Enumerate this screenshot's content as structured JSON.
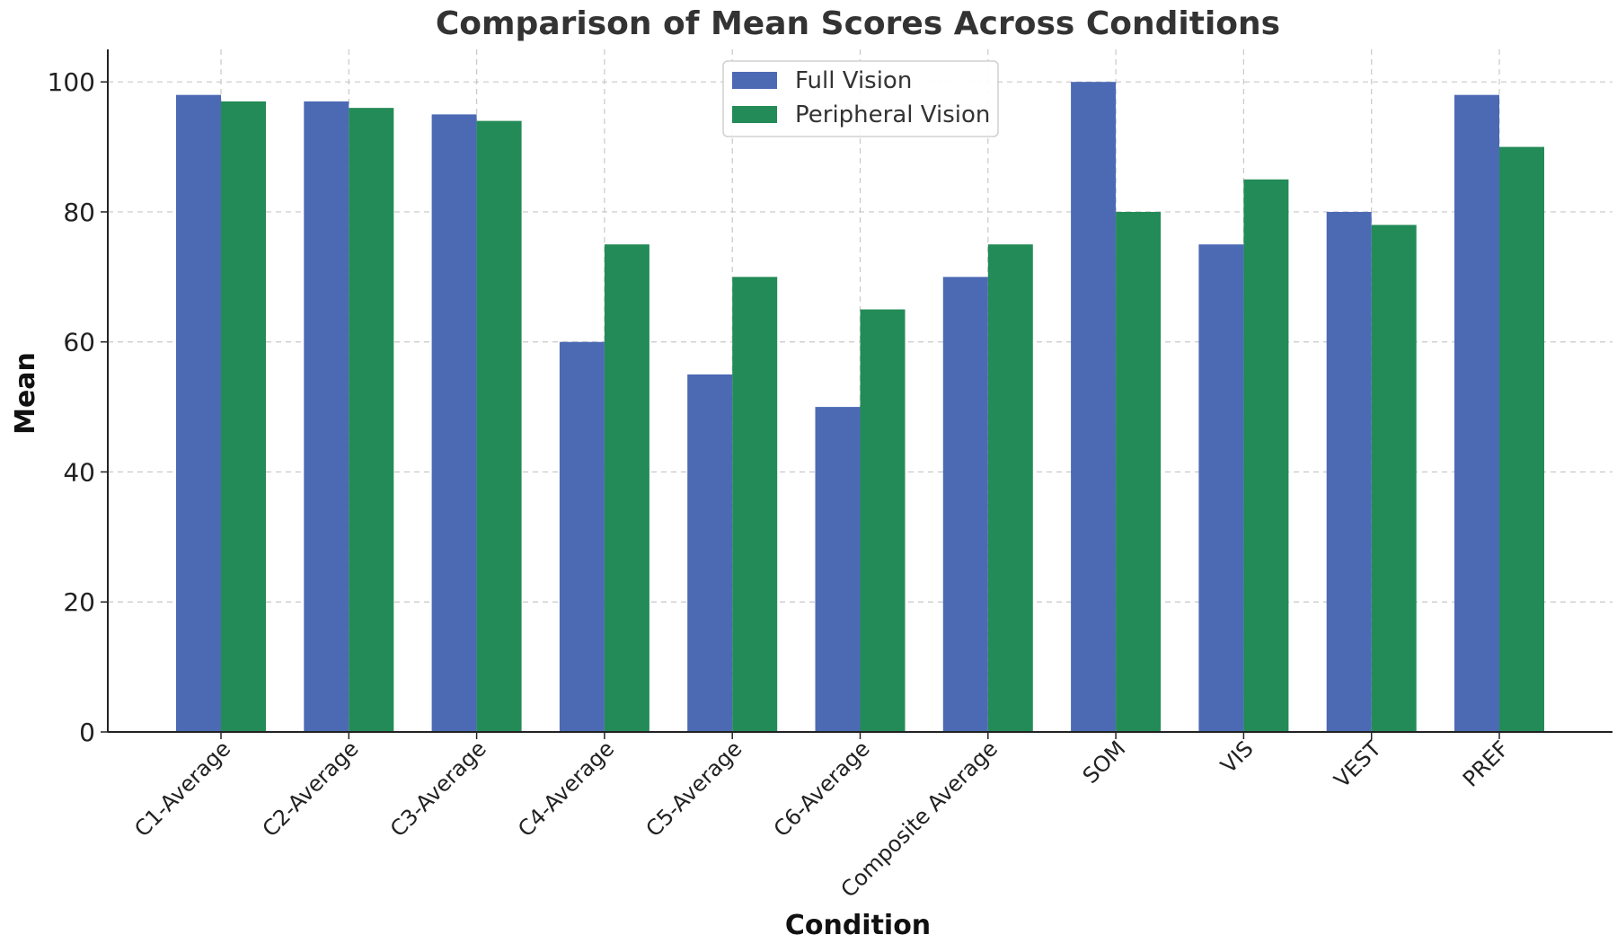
{
  "chart_data": {
    "type": "bar",
    "title": "Comparison of Mean Scores Across Conditions",
    "xlabel": "Condition",
    "ylabel": "Mean",
    "ylim": [
      0,
      105
    ],
    "yticks": [
      0,
      20,
      40,
      60,
      80,
      100
    ],
    "grid": true,
    "legend_position": "top-center",
    "categories": [
      "C1-Average",
      "C2-Average",
      "C3-Average",
      "C4-Average",
      "C5-Average",
      "C6-Average",
      "Composite Average",
      "SOM",
      "VIS",
      "VEST",
      "PREF"
    ],
    "series": [
      {
        "name": "Full Vision",
        "color": "#4c6ab4",
        "values": [
          98,
          97,
          95,
          60,
          55,
          50,
          70,
          100,
          75,
          80,
          98
        ]
      },
      {
        "name": "Peripheral Vision",
        "color": "#238b57",
        "values": [
          97,
          96,
          94,
          75,
          70,
          65,
          75,
          80,
          85,
          78,
          90
        ]
      }
    ]
  }
}
